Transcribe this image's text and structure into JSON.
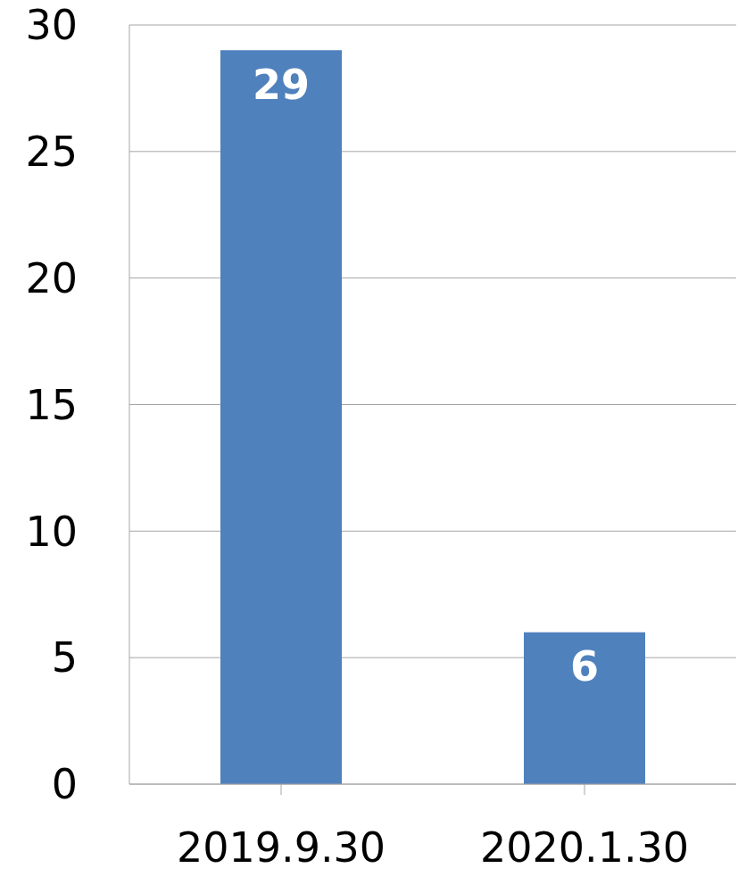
{
  "chart_data": {
    "type": "bar",
    "categories": [
      "2019.9.30",
      "2020.1.30"
    ],
    "values": [
      29,
      6
    ],
    "color": "#4f81bd",
    "ylim": [
      0,
      30
    ],
    "yticks": [
      0,
      5,
      10,
      15,
      20,
      25,
      30
    ],
    "grid": "y",
    "data_labels": true
  }
}
